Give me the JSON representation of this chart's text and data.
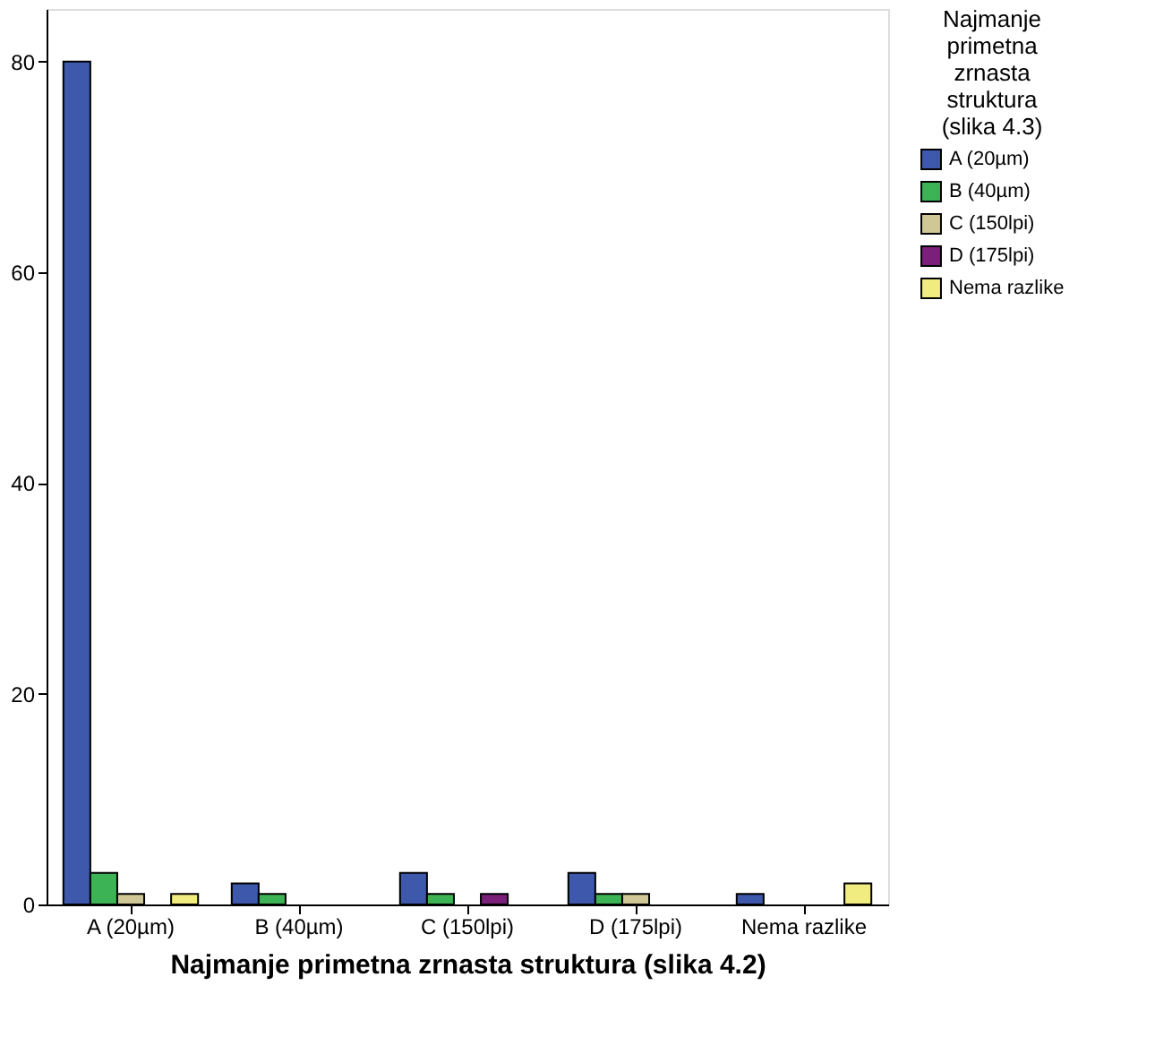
{
  "chart_data": {
    "type": "bar",
    "xlabel": "Najmanje primetna zrnasta struktura (slika 4.2)",
    "legend_title": "Najmanje primetna zrnasta struktura (slika 4.3)",
    "categories": [
      "A (20µm)",
      "B (40µm)",
      "C (150lpi)",
      "D (175lpi)",
      "Nema razlike"
    ],
    "series": [
      {
        "name": "A (20µm)",
        "color": "#3e58ac",
        "values": [
          80,
          2,
          3,
          3,
          1
        ]
      },
      {
        "name": "B (40µm)",
        "color": "#3cb455",
        "values": [
          3,
          1,
          1,
          1,
          null
        ]
      },
      {
        "name": "C (150lpi)",
        "color": "#cfc896",
        "values": [
          1,
          null,
          null,
          1,
          null
        ]
      },
      {
        "name": "D (175lpi)",
        "color": "#7a1f7a",
        "values": [
          null,
          null,
          1,
          null,
          null
        ]
      },
      {
        "name": "Nema razlike",
        "color": "#f0ec80",
        "values": [
          1,
          null,
          null,
          null,
          2
        ]
      }
    ],
    "ylim": [
      0,
      85
    ],
    "yticks": [
      0,
      20,
      40,
      60,
      80
    ],
    "grid": false,
    "legend": "right"
  }
}
